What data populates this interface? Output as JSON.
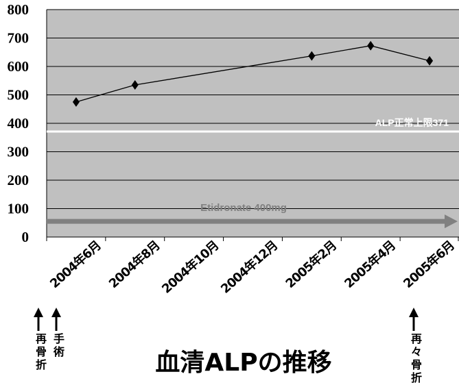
{
  "chart_data": {
    "type": "line",
    "title": "血清ALPの推移",
    "categories": [
      "2004年6月",
      "2004年8月",
      "2004年10月",
      "2004年12月",
      "2005年2月",
      "2005年4月",
      "2005年6月"
    ],
    "series": [
      {
        "x": [
          "2004年6月",
          "2004年8月",
          "2005年2月",
          "2005年4月",
          "2005年6月"
        ],
        "y": [
          475,
          535,
          637,
          673,
          620
        ],
        "color": "#000000",
        "marker": "diamond"
      }
    ],
    "ylim": [
      0,
      800
    ],
    "yticks": [
      "0",
      "100",
      "200",
      "300",
      "400",
      "500",
      "600",
      "700",
      "800"
    ],
    "grid": true,
    "background": "#c0c0c0",
    "reference_line": {
      "label": "ALP正常上限371",
      "value": 371,
      "color": "#ffffff"
    },
    "treatment_arrow": {
      "label": "Etidronate 400mg",
      "value": 55,
      "color": "#808080"
    },
    "events": [
      {
        "label": "再骨折",
        "at": "2004年6月"
      },
      {
        "label": "手術",
        "at": "2004年6月"
      },
      {
        "label": "再々骨折",
        "at": "2005年6月"
      }
    ]
  }
}
